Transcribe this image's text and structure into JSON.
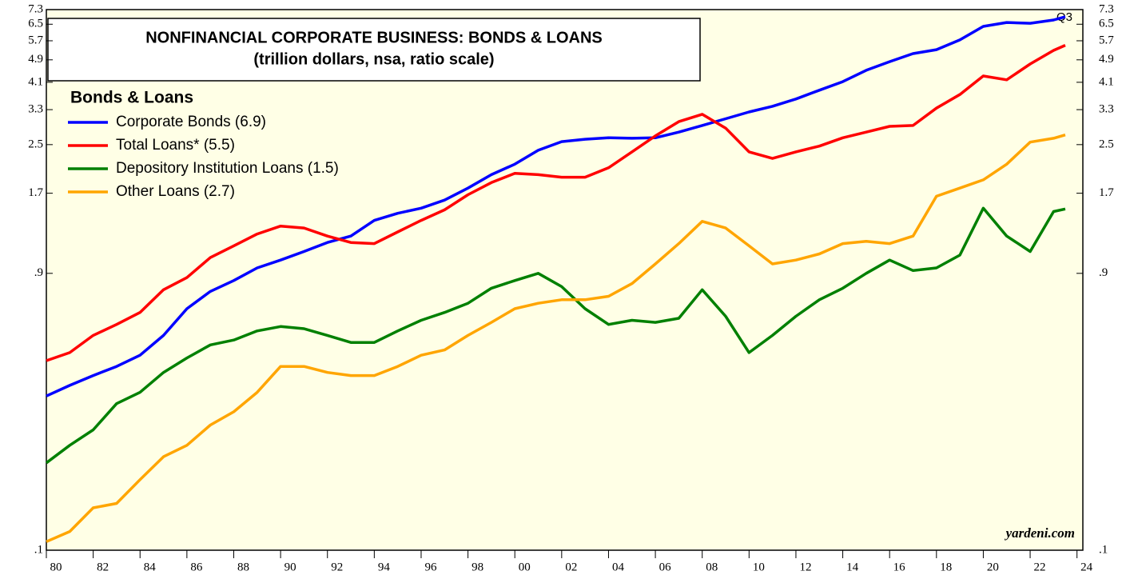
{
  "chart_data": {
    "type": "line",
    "title": "NONFINANCIAL CORPORATE BUSINESS: BONDS & LOANS",
    "subtitle": "(trillion dollars, nsa, ratio scale)",
    "legend_title": "Bonds & Loans",
    "annotation": "Q3",
    "source": "yardeni.com",
    "log_scale": true,
    "x": [
      1980,
      1981,
      1982,
      1983,
      1984,
      1985,
      1986,
      1987,
      1988,
      1989,
      1990,
      1991,
      1992,
      1993,
      1994,
      1995,
      1996,
      1997,
      1998,
      1999,
      2000,
      2001,
      2002,
      2003,
      2004,
      2005,
      2006,
      2007,
      2008,
      2009,
      2010,
      2011,
      2012,
      2013,
      2014,
      2015,
      2016,
      2017,
      2018,
      2019,
      2020,
      2021,
      2022,
      2023,
      2023.5
    ],
    "series": [
      {
        "name": "Corporate Bonds (6.9)",
        "color": "#0000ff",
        "values": [
          0.34,
          0.37,
          0.4,
          0.43,
          0.47,
          0.55,
          0.68,
          0.78,
          0.85,
          0.94,
          1.0,
          1.07,
          1.15,
          1.21,
          1.37,
          1.45,
          1.51,
          1.61,
          1.77,
          1.97,
          2.14,
          2.39,
          2.56,
          2.61,
          2.64,
          2.63,
          2.64,
          2.76,
          2.91,
          3.07,
          3.24,
          3.39,
          3.59,
          3.85,
          4.12,
          4.51,
          4.83,
          5.15,
          5.31,
          5.74,
          6.39,
          6.59,
          6.55,
          6.72,
          6.9
        ]
      },
      {
        "name": "Total Loans* (5.5)",
        "color": "#ff0000",
        "values": [
          0.45,
          0.48,
          0.55,
          0.6,
          0.66,
          0.79,
          0.87,
          1.02,
          1.12,
          1.23,
          1.31,
          1.29,
          1.21,
          1.15,
          1.14,
          1.25,
          1.37,
          1.49,
          1.68,
          1.85,
          1.99,
          1.97,
          1.93,
          1.93,
          2.08,
          2.36,
          2.68,
          3.0,
          3.18,
          2.85,
          2.36,
          2.24,
          2.36,
          2.47,
          2.64,
          2.76,
          2.89,
          2.91,
          3.34,
          3.72,
          4.31,
          4.18,
          4.74,
          5.28,
          5.5
        ]
      },
      {
        "name": "Depository Institution Loans (1.5)",
        "color": "#008000",
        "values": [
          0.2,
          0.23,
          0.26,
          0.32,
          0.35,
          0.41,
          0.46,
          0.51,
          0.53,
          0.57,
          0.59,
          0.58,
          0.55,
          0.52,
          0.52,
          0.57,
          0.62,
          0.66,
          0.71,
          0.8,
          0.85,
          0.9,
          0.81,
          0.68,
          0.6,
          0.62,
          0.61,
          0.63,
          0.79,
          0.64,
          0.48,
          0.55,
          0.64,
          0.73,
          0.8,
          0.9,
          1.0,
          0.92,
          0.94,
          1.04,
          1.51,
          1.21,
          1.07,
          1.47,
          1.5
        ]
      },
      {
        "name": "Other Loans (2.7)",
        "color": "#ffa500",
        "values": [
          0.107,
          0.116,
          0.14,
          0.145,
          0.175,
          0.21,
          0.23,
          0.27,
          0.3,
          0.35,
          0.43,
          0.43,
          0.41,
          0.4,
          0.4,
          0.43,
          0.47,
          0.49,
          0.55,
          0.61,
          0.68,
          0.71,
          0.73,
          0.73,
          0.75,
          0.83,
          0.97,
          1.14,
          1.36,
          1.29,
          1.12,
          0.97,
          1.0,
          1.05,
          1.14,
          1.16,
          1.14,
          1.21,
          1.66,
          1.77,
          1.89,
          2.14,
          2.55,
          2.63,
          2.7
        ]
      }
    ],
    "xlim": [
      1980,
      2024.25
    ],
    "xticks": [
      {
        "value": 1980,
        "label": "80"
      },
      {
        "value": 1982,
        "label": "82"
      },
      {
        "value": 1984,
        "label": "84"
      },
      {
        "value": 1986,
        "label": "86"
      },
      {
        "value": 1988,
        "label": "88"
      },
      {
        "value": 1990,
        "label": "90"
      },
      {
        "value": 1992,
        "label": "92"
      },
      {
        "value": 1994,
        "label": "94"
      },
      {
        "value": 1996,
        "label": "96"
      },
      {
        "value": 1998,
        "label": "98"
      },
      {
        "value": 2000,
        "label": "00"
      },
      {
        "value": 2002,
        "label": "02"
      },
      {
        "value": 2004,
        "label": "04"
      },
      {
        "value": 2006,
        "label": "06"
      },
      {
        "value": 2008,
        "label": "08"
      },
      {
        "value": 2010,
        "label": "10"
      },
      {
        "value": 2012,
        "label": "12"
      },
      {
        "value": 2014,
        "label": "14"
      },
      {
        "value": 2016,
        "label": "16"
      },
      {
        "value": 2018,
        "label": "18"
      },
      {
        "value": 2020,
        "label": "20"
      },
      {
        "value": 2022,
        "label": "22"
      },
      {
        "value": 2024,
        "label": "24"
      }
    ],
    "ylim": [
      0.1,
      7.3
    ],
    "yticks": [
      7.3,
      6.5,
      5.7,
      4.9,
      4.1,
      3.3,
      2.5,
      1.7,
      {
        "value": 0.9,
        "label": ".9"
      },
      {
        "value": 0.1,
        "label": ".1"
      }
    ]
  }
}
